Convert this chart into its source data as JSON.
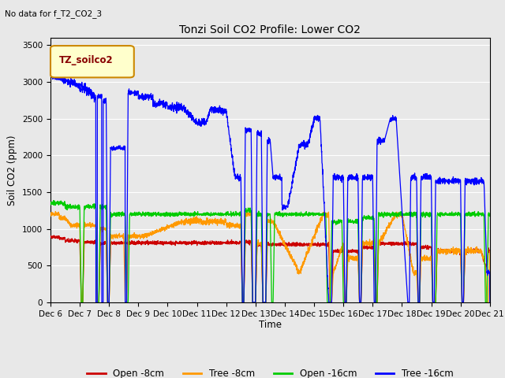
{
  "title": "Tonzi Soil CO2 Profile: Lower CO2",
  "subtitle": "No data for f_T2_CO2_3",
  "ylabel": "Soil CO2 (ppm)",
  "xlabel": "Time",
  "ylim": [
    0,
    3600
  ],
  "yticks": [
    0,
    500,
    1000,
    1500,
    2000,
    2500,
    3000,
    3500
  ],
  "legend_box_label": "TZ_soilco2",
  "fig_bg_color": "#e8e8e8",
  "plot_bg_color": "#e8e8e8",
  "colors": {
    "open_8cm": "#cc0000",
    "tree_8cm": "#ff9900",
    "open_16cm": "#00cc00",
    "tree_16cm": "#0000ff"
  },
  "legend_labels": [
    "Open -8cm",
    "Tree -8cm",
    "Open -16cm",
    "Tree -16cm"
  ],
  "x_tick_labels": [
    "Dec 6",
    "Dec 7",
    "Dec 8",
    "Dec 9",
    "Dec 10",
    "Dec 11",
    "Dec 12",
    "Dec 13",
    "Dec 14",
    "Dec 15",
    "Dec 16",
    "Dec 17",
    "Dec 18",
    "Dec 19",
    "Dec 20",
    "Dec 21"
  ]
}
